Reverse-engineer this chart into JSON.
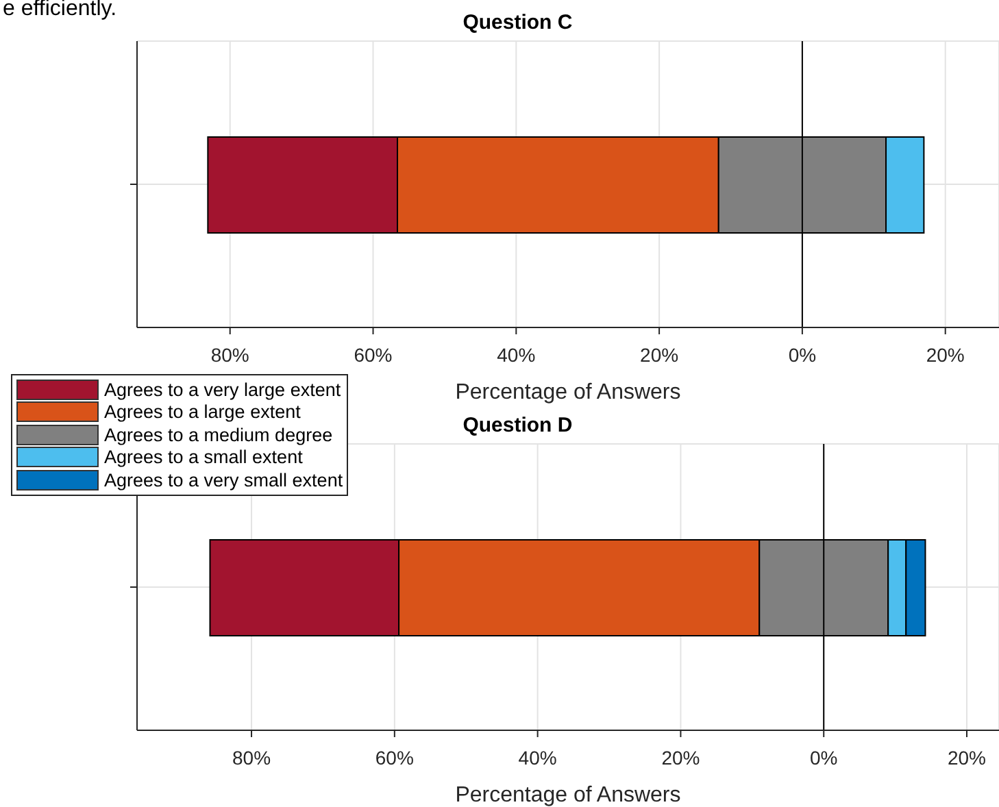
{
  "chart_data": [
    {
      "type": "bar",
      "orientation": "horizontal",
      "title": "Question C",
      "xlabel": "Percentage of Answers",
      "annotations": [
        "e efficiently."
      ],
      "categories": [
        null
      ],
      "series": [
        {
          "name": "Agrees to a very large extent",
          "color": "#a2142f",
          "base": [
            56.6
          ],
          "values": [
            26.5
          ]
        },
        {
          "name": "Agrees to a large extent",
          "color": "#d95319",
          "base": [
            11.7
          ],
          "values": [
            44.9
          ]
        },
        {
          "name": "Agrees to a medium degree",
          "color": "#808080",
          "base": [
            -11.7
          ],
          "values": [
            23.4
          ]
        },
        {
          "name": "Agrees to a small extent",
          "color": "#4dbeee",
          "base": [
            -17.0
          ],
          "values": [
            5.3
          ]
        },
        {
          "name": "Agrees to a very small extent",
          "color": "#0072bd",
          "base": [
            null
          ],
          "values": [
            null
          ]
        }
      ],
      "xlim": [
        93,
        -27.5
      ],
      "xticks": [
        {
          "value": 80,
          "label": "80%"
        },
        {
          "value": 60,
          "label": "60%"
        },
        {
          "value": 40,
          "label": "40%"
        },
        {
          "value": 20,
          "label": "20%"
        },
        {
          "value": 0,
          "label": "0%"
        },
        {
          "value": -20,
          "label": "20%"
        }
      ],
      "ref_lines": [
        {
          "axis": "x",
          "value": 0,
          "color": "#000000"
        }
      ],
      "grid": true,
      "legend": "bottom left"
    },
    {
      "type": "bar",
      "orientation": "horizontal",
      "title": "Question D",
      "xlabel": "Percentage of Answers",
      "categories": [
        null
      ],
      "series": [
        {
          "color": "#a2142f",
          "base": [
            59.4
          ],
          "values": [
            26.4
          ]
        },
        {
          "color": "#d95319",
          "base": [
            9.0
          ],
          "values": [
            50.4
          ]
        },
        {
          "color": "#808080",
          "base": [
            -9.0
          ],
          "values": [
            18.0
          ]
        },
        {
          "color": "#4dbeee",
          "base": [
            -11.5
          ],
          "values": [
            2.5
          ]
        },
        {
          "color": "#0072bd",
          "base": [
            -14.2
          ],
          "values": [
            2.7
          ]
        }
      ],
      "xlim": [
        96,
        -24.5
      ],
      "xticks": [
        {
          "value": 80,
          "label": "80%"
        },
        {
          "value": 60,
          "label": "60%"
        },
        {
          "value": 40,
          "label": "40%"
        },
        {
          "value": 20,
          "label": "20%"
        },
        {
          "value": 0,
          "label": "0%"
        },
        {
          "value": -20,
          "label": "20%"
        }
      ],
      "ref_lines": [
        {
          "axis": "x",
          "value": 0,
          "color": "#000000"
        }
      ],
      "grid": true
    }
  ]
}
